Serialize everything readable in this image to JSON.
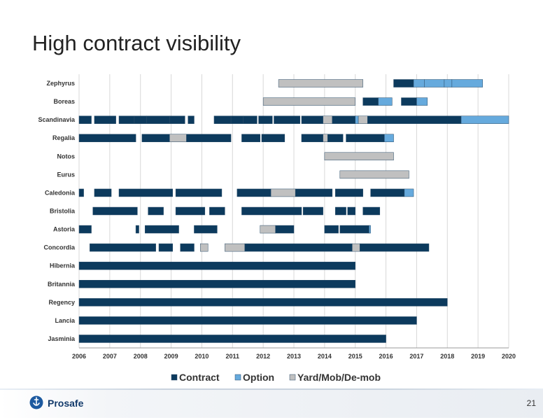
{
  "slide": {
    "title": "High contract visibility",
    "page_number": "21",
    "brand": "Prosafe"
  },
  "colors": {
    "contract": "#0c3a5d",
    "option": "#66aadd",
    "yard": "#c0c0c0",
    "grid": "#d8d8d8"
  },
  "chart_data": {
    "type": "gantt",
    "xlim": [
      2006,
      2020
    ],
    "xticks": [
      "2006",
      "2007",
      "2008",
      "2009",
      "2010",
      "2011",
      "2012",
      "2013",
      "2014",
      "2015",
      "2016",
      "2017",
      "2018",
      "2019",
      "2020"
    ],
    "legend": [
      "Contract",
      "Option",
      "Yard/Mob/De-mob"
    ],
    "legend_position": "bottom",
    "grid": true,
    "rows": [
      {
        "name": "Zephyrus",
        "bars": [
          {
            "s": 2012.5,
            "e": 2015.25,
            "k": "yard"
          },
          {
            "s": 2016.25,
            "e": 2016.9,
            "k": "contract"
          },
          {
            "s": 2016.9,
            "e": 2017.25,
            "k": "option"
          },
          {
            "s": 2017.25,
            "e": 2017.9,
            "k": "option"
          },
          {
            "s": 2017.9,
            "e": 2018.15,
            "k": "option"
          },
          {
            "s": 2018.15,
            "e": 2019.15,
            "k": "option"
          }
        ]
      },
      {
        "name": "Boreas",
        "bars": [
          {
            "s": 2012.0,
            "e": 2015.0,
            "k": "yard"
          },
          {
            "s": 2015.25,
            "e": 2015.75,
            "k": "contract"
          },
          {
            "s": 2015.75,
            "e": 2016.2,
            "k": "option"
          },
          {
            "s": 2016.5,
            "e": 2017.0,
            "k": "contract"
          },
          {
            "s": 2017.0,
            "e": 2017.35,
            "k": "option"
          }
        ]
      },
      {
        "name": "Scandinavia",
        "bars": [
          {
            "s": 2006.0,
            "e": 2006.4,
            "k": "contract"
          },
          {
            "s": 2006.5,
            "e": 2007.2,
            "k": "contract"
          },
          {
            "s": 2007.3,
            "e": 2007.8,
            "k": "contract"
          },
          {
            "s": 2007.8,
            "e": 2008.2,
            "k": "contract"
          },
          {
            "s": 2008.2,
            "e": 2008.95,
            "k": "contract"
          },
          {
            "s": 2008.95,
            "e": 2009.45,
            "k": "contract"
          },
          {
            "s": 2009.55,
            "e": 2009.75,
            "k": "contract"
          },
          {
            "s": 2010.4,
            "e": 2010.95,
            "k": "contract"
          },
          {
            "s": 2010.95,
            "e": 2011.35,
            "k": "contract"
          },
          {
            "s": 2011.35,
            "e": 2011.8,
            "k": "contract"
          },
          {
            "s": 2011.85,
            "e": 2012.3,
            "k": "contract"
          },
          {
            "s": 2012.35,
            "e": 2013.2,
            "k": "contract"
          },
          {
            "s": 2013.25,
            "e": 2013.95,
            "k": "contract"
          },
          {
            "s": 2013.95,
            "e": 2014.25,
            "k": "yard"
          },
          {
            "s": 2014.25,
            "e": 2015.0,
            "k": "contract"
          },
          {
            "s": 2015.0,
            "e": 2015.1,
            "k": "option"
          },
          {
            "s": 2015.1,
            "e": 2015.4,
            "k": "yard"
          },
          {
            "s": 2015.4,
            "e": 2018.45,
            "k": "contract"
          },
          {
            "s": 2018.45,
            "e": 2020.0,
            "k": "option"
          }
        ]
      },
      {
        "name": "Regalia",
        "bars": [
          {
            "s": 2006.0,
            "e": 2007.85,
            "k": "contract"
          },
          {
            "s": 2008.05,
            "e": 2008.95,
            "k": "contract"
          },
          {
            "s": 2008.95,
            "e": 2009.5,
            "k": "yard"
          },
          {
            "s": 2009.5,
            "e": 2010.95,
            "k": "contract"
          },
          {
            "s": 2011.3,
            "e": 2011.9,
            "k": "contract"
          },
          {
            "s": 2011.95,
            "e": 2012.7,
            "k": "contract"
          },
          {
            "s": 2013.25,
            "e": 2013.95,
            "k": "contract"
          },
          {
            "s": 2013.95,
            "e": 2014.1,
            "k": "yard"
          },
          {
            "s": 2014.1,
            "e": 2014.6,
            "k": "contract"
          },
          {
            "s": 2014.7,
            "e": 2015.95,
            "k": "contract"
          },
          {
            "s": 2015.95,
            "e": 2016.25,
            "k": "option"
          }
        ]
      },
      {
        "name": "Notos",
        "bars": [
          {
            "s": 2014.0,
            "e": 2016.25,
            "k": "yard"
          }
        ]
      },
      {
        "name": "Eurus",
        "bars": [
          {
            "s": 2014.5,
            "e": 2016.75,
            "k": "yard"
          }
        ]
      },
      {
        "name": "Caledonia",
        "bars": [
          {
            "s": 2006.0,
            "e": 2006.15,
            "k": "contract"
          },
          {
            "s": 2006.5,
            "e": 2007.05,
            "k": "contract"
          },
          {
            "s": 2007.3,
            "e": 2009.05,
            "k": "contract"
          },
          {
            "s": 2009.15,
            "e": 2010.65,
            "k": "contract"
          },
          {
            "s": 2011.15,
            "e": 2012.25,
            "k": "contract"
          },
          {
            "s": 2012.25,
            "e": 2013.05,
            "k": "yard"
          },
          {
            "s": 2013.05,
            "e": 2014.25,
            "k": "contract"
          },
          {
            "s": 2014.35,
            "e": 2015.25,
            "k": "contract"
          },
          {
            "s": 2015.5,
            "e": 2016.6,
            "k": "contract"
          },
          {
            "s": 2016.6,
            "e": 2016.9,
            "k": "option"
          }
        ]
      },
      {
        "name": "Bristolia",
        "bars": [
          {
            "s": 2006.45,
            "e": 2007.9,
            "k": "contract"
          },
          {
            "s": 2008.25,
            "e": 2008.75,
            "k": "contract"
          },
          {
            "s": 2009.15,
            "e": 2010.1,
            "k": "contract"
          },
          {
            "s": 2010.25,
            "e": 2010.75,
            "k": "contract"
          },
          {
            "s": 2011.3,
            "e": 2013.25,
            "k": "contract"
          },
          {
            "s": 2013.3,
            "e": 2013.95,
            "k": "contract"
          },
          {
            "s": 2014.35,
            "e": 2014.7,
            "k": "contract"
          },
          {
            "s": 2014.75,
            "e": 2015.0,
            "k": "contract"
          },
          {
            "s": 2015.25,
            "e": 2015.8,
            "k": "contract"
          }
        ]
      },
      {
        "name": "Astoria",
        "bars": [
          {
            "s": 2006.0,
            "e": 2006.4,
            "k": "contract"
          },
          {
            "s": 2007.85,
            "e": 2007.95,
            "k": "contract"
          },
          {
            "s": 2008.15,
            "e": 2009.25,
            "k": "contract"
          },
          {
            "s": 2009.75,
            "e": 2010.5,
            "k": "contract"
          },
          {
            "s": 2011.9,
            "e": 2012.4,
            "k": "yard"
          },
          {
            "s": 2012.4,
            "e": 2013.0,
            "k": "contract"
          },
          {
            "s": 2014.0,
            "e": 2014.45,
            "k": "contract"
          },
          {
            "s": 2014.5,
            "e": 2015.45,
            "k": "contract"
          },
          {
            "s": 2015.45,
            "e": 2015.5,
            "k": "option"
          }
        ]
      },
      {
        "name": "Concordia",
        "bars": [
          {
            "s": 2006.35,
            "e": 2008.5,
            "k": "contract"
          },
          {
            "s": 2008.6,
            "e": 2009.05,
            "k": "contract"
          },
          {
            "s": 2009.3,
            "e": 2009.75,
            "k": "contract"
          },
          {
            "s": 2009.95,
            "e": 2010.2,
            "k": "yard"
          },
          {
            "s": 2010.75,
            "e": 2011.4,
            "k": "yard"
          },
          {
            "s": 2011.4,
            "e": 2014.9,
            "k": "contract"
          },
          {
            "s": 2014.9,
            "e": 2015.15,
            "k": "yard"
          },
          {
            "s": 2015.15,
            "e": 2017.4,
            "k": "contract"
          }
        ]
      },
      {
        "name": "Hibernia",
        "bars": [
          {
            "s": 2006.0,
            "e": 2015.0,
            "k": "contract"
          }
        ]
      },
      {
        "name": "Britannia",
        "bars": [
          {
            "s": 2006.0,
            "e": 2015.0,
            "k": "contract"
          }
        ]
      },
      {
        "name": "Regency",
        "bars": [
          {
            "s": 2006.0,
            "e": 2018.0,
            "k": "contract"
          }
        ]
      },
      {
        "name": "Lancia",
        "bars": [
          {
            "s": 2006.0,
            "e": 2017.0,
            "k": "contract"
          }
        ]
      },
      {
        "name": "Jasminia",
        "bars": [
          {
            "s": 2006.0,
            "e": 2016.0,
            "k": "contract"
          }
        ]
      }
    ]
  }
}
